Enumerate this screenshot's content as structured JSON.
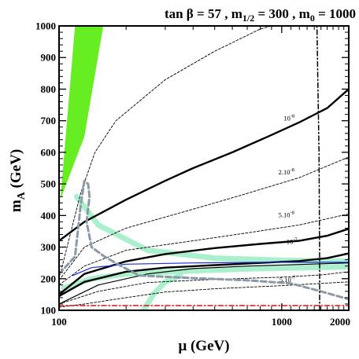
{
  "chart_data": {
    "type": "line",
    "title": "tan β = 57 ,  m1/2 = 300 ,  m0 = 1000",
    "title_parts": {
      "p1": "tan β = 57 ,  m",
      "sub1": "1/2",
      "p2": " = 300 ,  m",
      "sub2": "0",
      "p3": " = 1000"
    },
    "xlabel": "μ (GeV)",
    "ylabel": "m",
    "ylabel_sub": "A",
    "ylabel_unit": " (GeV)",
    "xscale": "log",
    "xlim": [
      100,
      2000
    ],
    "ylim": [
      100,
      1000
    ],
    "x_ticks": [
      {
        "value": 100,
        "label": "100"
      },
      {
        "value": 1000,
        "label": "1000"
      },
      {
        "value": 2000,
        "label": "2000"
      }
    ],
    "x_minor_ticks": [
      200,
      300,
      400,
      500,
      600,
      700,
      800,
      900,
      1100,
      1200,
      1300,
      1400,
      1500,
      1600,
      1700,
      1800,
      1900
    ],
    "y_ticks": [
      {
        "value": 100,
        "label": "100"
      },
      {
        "value": 200,
        "label": "200"
      },
      {
        "value": 300,
        "label": "300"
      },
      {
        "value": 400,
        "label": "400"
      },
      {
        "value": 500,
        "label": "500"
      },
      {
        "value": 600,
        "label": "600"
      },
      {
        "value": 700,
        "label": "700"
      },
      {
        "value": 800,
        "label": "800"
      },
      {
        "value": 900,
        "label": "900"
      },
      {
        "value": 1000,
        "label": "1000"
      }
    ],
    "colors": {
      "excluded_region": "#66ee22",
      "light_band": "#aaf0cc",
      "blue_line": "#1a2bd0",
      "red_line": "#dd1111",
      "gray_dashed": "#8a9aa8"
    },
    "excluded_region": {
      "points": [
        [
          100,
          400
        ],
        [
          118,
          1000
        ],
        [
          158,
          1000
        ],
        [
          130,
          650
        ],
        [
          112,
          530
        ],
        [
          100,
          440
        ]
      ]
    },
    "series": [
      {
        "style": "solid-thick",
        "points": [
          [
            100,
            320
          ],
          [
            130,
            380
          ],
          [
            200,
            450
          ],
          [
            300,
            510
          ],
          [
            400,
            550
          ],
          [
            600,
            600
          ],
          [
            900,
            655
          ],
          [
            1200,
            695
          ],
          [
            1600,
            740
          ],
          [
            2000,
            800
          ]
        ]
      },
      {
        "style": "solid-thick",
        "points": [
          [
            100,
            150
          ],
          [
            130,
            215
          ],
          [
            200,
            255
          ],
          [
            300,
            278
          ],
          [
            500,
            297
          ],
          [
            800,
            310
          ],
          [
            1200,
            320
          ],
          [
            1600,
            336
          ],
          [
            2000,
            358
          ]
        ]
      },
      {
        "style": "solid-thick",
        "points": [
          [
            100,
            145
          ],
          [
            130,
            190
          ],
          [
            200,
            222
          ],
          [
            300,
            235
          ],
          [
            500,
            243
          ],
          [
            800,
            250
          ],
          [
            1200,
            256
          ],
          [
            1600,
            265
          ],
          [
            2000,
            280
          ]
        ]
      },
      {
        "style": "solid-thin",
        "points": [
          [
            100,
            120
          ],
          [
            150,
            180
          ],
          [
            250,
            215
          ],
          [
            400,
            232
          ],
          [
            700,
            240
          ],
          [
            1200,
            245
          ],
          [
            2000,
            250
          ]
        ]
      },
      {
        "style": "dashed-thin",
        "points": [
          [
            100,
            200
          ],
          [
            125,
            470
          ],
          [
            145,
            600
          ],
          [
            180,
            700
          ],
          [
            300,
            830
          ],
          [
            500,
            920
          ],
          [
            800,
            990
          ],
          [
            900,
            1000
          ]
        ]
      },
      {
        "style": "dashed-thin",
        "points": [
          [
            100,
            195
          ],
          [
            130,
            300
          ],
          [
            200,
            360
          ],
          [
            400,
            420
          ],
          [
            700,
            470
          ],
          [
            1200,
            520
          ],
          [
            2000,
            585
          ]
        ]
      },
      {
        "style": "dashed-thin",
        "points": [
          [
            100,
            180
          ],
          [
            130,
            240
          ],
          [
            200,
            290
          ],
          [
            400,
            320
          ],
          [
            700,
            345
          ],
          [
            1200,
            370
          ],
          [
            2000,
            405
          ]
        ]
      },
      {
        "style": "dashed-thin",
        "points": [
          [
            100,
            120
          ],
          [
            150,
            160
          ],
          [
            250,
            188
          ],
          [
            500,
            198
          ],
          [
            1000,
            205
          ],
          [
            1500,
            212
          ],
          [
            2000,
            222
          ]
        ]
      },
      {
        "style": "dashed-thin",
        "points": [
          [
            100,
            110
          ],
          [
            130,
            120
          ],
          [
            200,
            140
          ],
          [
            300,
            158
          ],
          [
            500,
            168
          ],
          [
            1000,
            178
          ],
          [
            2000,
            190
          ]
        ]
      },
      {
        "style": "dashed-thick-gray",
        "points": [
          [
            100,
            215
          ],
          [
            118,
            270
          ],
          [
            125,
            430
          ],
          [
            130,
            510
          ],
          [
            135,
            500
          ],
          [
            137,
            460
          ],
          [
            133,
            380
          ],
          [
            140,
            300
          ],
          [
            160,
            270
          ],
          [
            190,
            240
          ],
          [
            230,
            210
          ],
          [
            400,
            202
          ],
          [
            700,
            195
          ],
          [
            1100,
            185
          ],
          [
            1500,
            160
          ],
          [
            2000,
            135
          ]
        ]
      },
      {
        "style": "band-light",
        "points": [
          [
            120,
            460
          ],
          [
            150,
            370
          ],
          [
            250,
            290
          ],
          [
            500,
            265
          ],
          [
            1000,
            258
          ],
          [
            2000,
            255
          ]
        ]
      },
      {
        "style": "band-light",
        "points": [
          [
            105,
            170
          ],
          [
            140,
            200
          ],
          [
            200,
            215
          ],
          [
            400,
            225
          ],
          [
            800,
            232
          ],
          [
            2000,
            238
          ]
        ]
      },
      {
        "style": "band-light",
        "points": [
          [
            240,
            100
          ],
          [
            265,
            150
          ],
          [
            300,
            190
          ],
          [
            350,
            210
          ]
        ]
      },
      {
        "style": "blue-line",
        "points": [
          [
            115,
            210
          ],
          [
            140,
            235
          ],
          [
            200,
            246
          ],
          [
            400,
            250
          ],
          [
            800,
            252
          ],
          [
            2000,
            252
          ]
        ]
      },
      {
        "style": "dashdot-red",
        "points": [
          [
            100,
            115
          ],
          [
            2000,
            115
          ]
        ]
      },
      {
        "style": "dashdot-black",
        "points": [
          [
            1480,
            100
          ],
          [
            1480,
            260
          ],
          [
            1470,
            600
          ],
          [
            1440,
            1000
          ]
        ]
      }
    ],
    "annotations": [
      {
        "text": "10-8",
        "base": "10",
        "exp": "-8",
        "x": 1080,
        "y": 700
      },
      {
        "text": "2.10-8",
        "base": "2.10",
        "exp": "-8",
        "x": 1050,
        "y": 530
      },
      {
        "text": "5.10-8",
        "base": "5.10",
        "exp": "-8",
        "x": 1050,
        "y": 395
      },
      {
        "text": "10-7",
        "base": "10",
        "exp": "-7",
        "x": 1110,
        "y": 310
      },
      {
        "text": "5.10-7",
        "base": "5.10",
        "exp": "-7",
        "x": 1060,
        "y": 190
      }
    ]
  }
}
